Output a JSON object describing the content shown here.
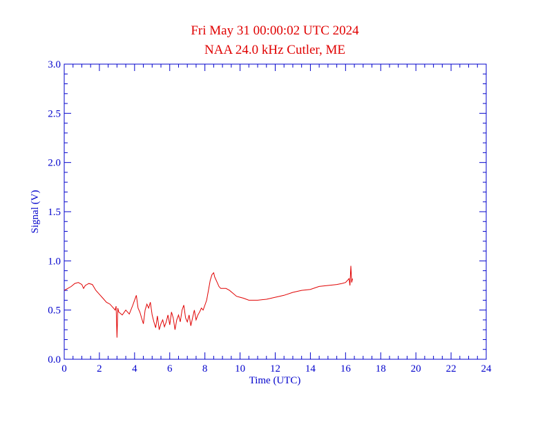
{
  "chart_data": {
    "type": "line",
    "title": "Fri May 31 00:00:02 UTC 2024",
    "subtitle": "NAA 24.0 kHz Cutler, ME",
    "xlabel": "Time (UTC)",
    "ylabel": "Signal (V)",
    "xlim": [
      0,
      24
    ],
    "ylim": [
      0,
      3.0
    ],
    "x_ticks": [
      0,
      2,
      4,
      6,
      8,
      10,
      12,
      14,
      16,
      18,
      20,
      22,
      24
    ],
    "x_tick_labels": [
      "0",
      "2",
      "4",
      "6",
      "8",
      "10",
      "12",
      "14",
      "16",
      "18",
      "20",
      "22",
      "24"
    ],
    "y_ticks": [
      0.0,
      0.5,
      1.0,
      1.5,
      2.0,
      2.5,
      3.0
    ],
    "y_tick_labels": [
      "0.0",
      "0.5",
      "1.0",
      "1.5",
      "2.0",
      "2.5",
      "3.0"
    ],
    "grid": false,
    "series_color": "#e00000",
    "axis_color": "#0000cc",
    "series": [
      {
        "x": [
          0.0,
          0.2,
          0.4,
          0.6,
          0.8,
          1.0,
          1.1,
          1.2,
          1.4,
          1.6,
          1.8,
          2.0,
          2.2,
          2.4,
          2.6,
          2.8,
          2.9,
          2.95,
          3.0,
          3.05,
          3.1,
          3.3,
          3.5,
          3.7,
          3.9,
          4.0,
          4.1,
          4.2,
          4.3,
          4.4,
          4.5,
          4.6,
          4.7,
          4.8,
          4.9,
          5.0,
          5.1,
          5.2,
          5.3,
          5.4,
          5.5,
          5.6,
          5.7,
          5.8,
          5.9,
          6.0,
          6.1,
          6.2,
          6.3,
          6.4,
          6.5,
          6.6,
          6.7,
          6.8,
          6.9,
          7.0,
          7.1,
          7.2,
          7.3,
          7.4,
          7.5,
          7.6,
          7.7,
          7.8,
          7.9,
          8.0,
          8.1,
          8.2,
          8.3,
          8.4,
          8.5,
          8.55,
          8.6,
          8.7,
          8.8,
          8.9,
          9.0,
          9.2,
          9.4,
          9.6,
          9.8,
          10.0,
          10.2,
          10.5,
          10.8,
          11.0,
          11.5,
          12.0,
          12.5,
          13.0,
          13.5,
          14.0,
          14.5,
          15.0,
          15.5,
          15.8,
          16.0,
          16.1,
          16.2,
          16.25,
          16.3,
          16.35,
          16.4
        ],
        "y": [
          0.7,
          0.72,
          0.74,
          0.77,
          0.78,
          0.76,
          0.72,
          0.75,
          0.77,
          0.76,
          0.7,
          0.66,
          0.62,
          0.58,
          0.56,
          0.52,
          0.5,
          0.54,
          0.22,
          0.52,
          0.48,
          0.45,
          0.5,
          0.46,
          0.55,
          0.6,
          0.65,
          0.52,
          0.48,
          0.42,
          0.36,
          0.5,
          0.56,
          0.52,
          0.58,
          0.45,
          0.38,
          0.32,
          0.44,
          0.3,
          0.36,
          0.4,
          0.33,
          0.38,
          0.45,
          0.35,
          0.48,
          0.42,
          0.3,
          0.4,
          0.45,
          0.38,
          0.5,
          0.55,
          0.42,
          0.38,
          0.45,
          0.34,
          0.42,
          0.5,
          0.4,
          0.45,
          0.48,
          0.52,
          0.5,
          0.55,
          0.6,
          0.7,
          0.8,
          0.86,
          0.88,
          0.84,
          0.82,
          0.78,
          0.74,
          0.72,
          0.72,
          0.72,
          0.7,
          0.67,
          0.64,
          0.63,
          0.62,
          0.6,
          0.6,
          0.6,
          0.61,
          0.63,
          0.65,
          0.68,
          0.7,
          0.71,
          0.74,
          0.75,
          0.76,
          0.77,
          0.78,
          0.8,
          0.82,
          0.75,
          0.95,
          0.78,
          0.82
        ]
      }
    ]
  }
}
